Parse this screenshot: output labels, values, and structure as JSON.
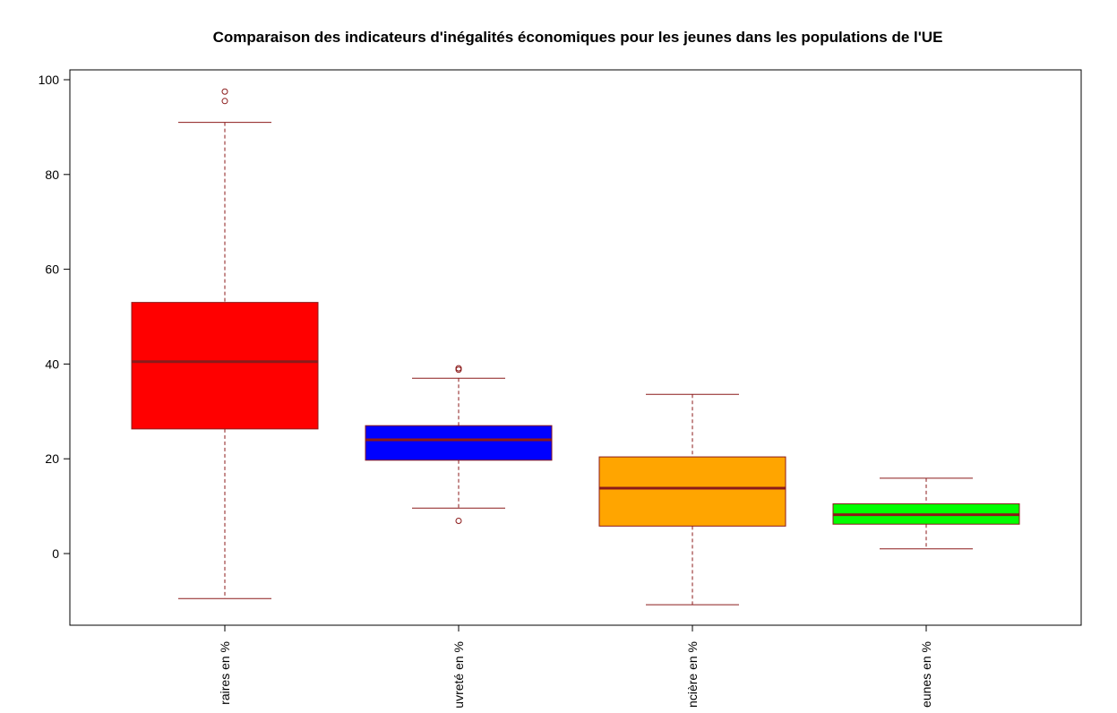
{
  "chart_data": {
    "type": "boxplot",
    "title": "Comparaison des indicateurs d'inégalités économiques pour les jeunes dans les populations de l'UE",
    "xlabel": "",
    "ylabel": "",
    "ylim": [
      -15,
      102
    ],
    "yticks": [
      0,
      20,
      40,
      60,
      80,
      100
    ],
    "grid": false,
    "legend": "none",
    "line_color": "#8b1a1a",
    "categories": [
      "raires en %",
      "uvreté en %",
      "ncière en %",
      "eunes en %"
    ],
    "boxes": [
      {
        "label": "raires en %",
        "fill": "#ff0000",
        "whisker_low": -9.5,
        "q1": 26.3,
        "median": 40.5,
        "q3": 53,
        "whisker_high": 91,
        "outliers": [
          95.5,
          97.5
        ]
      },
      {
        "label": "uvreté en %",
        "fill": "#0000ff",
        "whisker_low": 9.6,
        "q1": 19.7,
        "median": 24,
        "q3": 27,
        "whisker_high": 37,
        "outliers": [
          38.8,
          39.1,
          6.9
        ]
      },
      {
        "label": "ncière en %",
        "fill": "#ffa500",
        "whisker_low": -10.8,
        "q1": 5.8,
        "median": 13.8,
        "q3": 20.4,
        "whisker_high": 33.6,
        "outliers": []
      },
      {
        "label": "eunes en %",
        "fill": "#00ff00",
        "whisker_low": 1,
        "q1": 6.2,
        "median": 8.2,
        "q3": 10.5,
        "whisker_high": 15.9,
        "outliers": []
      }
    ]
  }
}
